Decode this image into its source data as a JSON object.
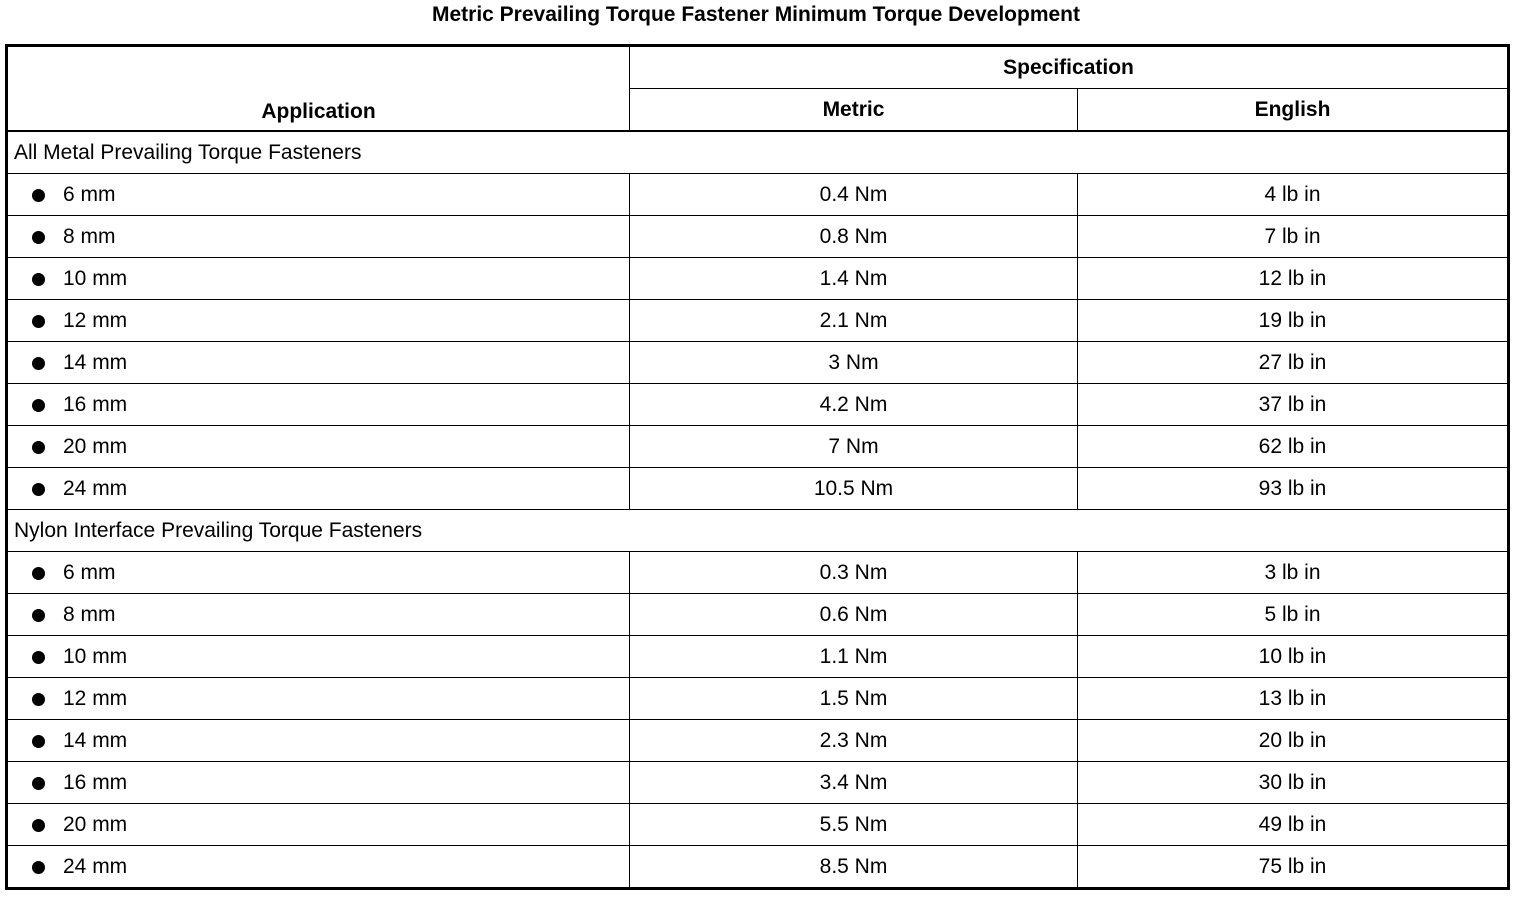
{
  "title": "Metric Prevailing Torque Fastener Minimum Torque Development",
  "headers": {
    "application": "Application",
    "specification": "Specification",
    "metric": "Metric",
    "english": "English"
  },
  "groups": [
    {
      "label": "All Metal Prevailing Torque Fasteners",
      "rows": [
        {
          "size": "6 mm",
          "metric": "0.4 Nm",
          "english": "4 lb in"
        },
        {
          "size": "8 mm",
          "metric": "0.8 Nm",
          "english": "7 lb in"
        },
        {
          "size": "10 mm",
          "metric": "1.4 Nm",
          "english": "12 lb in"
        },
        {
          "size": "12 mm",
          "metric": "2.1 Nm",
          "english": "19 lb in"
        },
        {
          "size": "14 mm",
          "metric": "3 Nm",
          "english": "27 lb in"
        },
        {
          "size": "16 mm",
          "metric": "4.2 Nm",
          "english": "37 lb in"
        },
        {
          "size": "20 mm",
          "metric": "7 Nm",
          "english": "62 lb in"
        },
        {
          "size": "24 mm",
          "metric": "10.5 Nm",
          "english": "93 lb in"
        }
      ]
    },
    {
      "label": "Nylon Interface Prevailing Torque Fasteners",
      "rows": [
        {
          "size": "6 mm",
          "metric": "0.3 Nm",
          "english": "3 lb in"
        },
        {
          "size": "8 mm",
          "metric": "0.6 Nm",
          "english": "5 lb in"
        },
        {
          "size": "10 mm",
          "metric": "1.1 Nm",
          "english": "10 lb in"
        },
        {
          "size": "12 mm",
          "metric": "1.5 Nm",
          "english": "13 lb in"
        },
        {
          "size": "14 mm",
          "metric": "2.3 Nm",
          "english": "20 lb in"
        },
        {
          "size": "16 mm",
          "metric": "3.4 Nm",
          "english": "30 lb in"
        },
        {
          "size": "20 mm",
          "metric": "5.5 Nm",
          "english": "49 lb in"
        },
        {
          "size": "24 mm",
          "metric": "8.5 Nm",
          "english": "75 lb in"
        }
      ]
    }
  ]
}
